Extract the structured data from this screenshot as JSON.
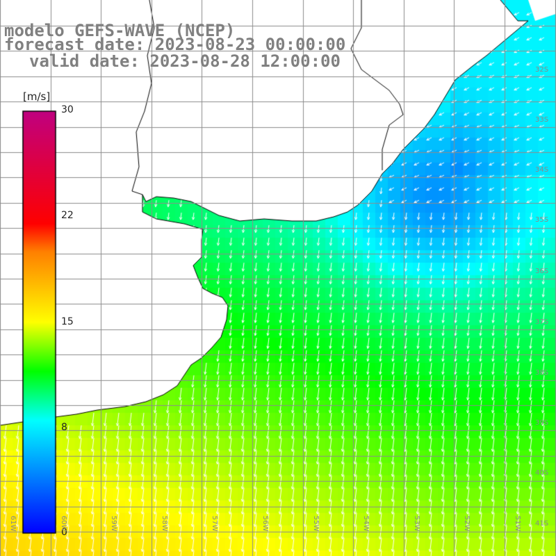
{
  "title": {
    "line1": "modelo GEFS-WAVE (NCEP)",
    "line2": "forecast date: 2023-08-23 00:00:00",
    "line3": "valid date: 2023-08-28 12:00:00"
  },
  "colorbar": {
    "unit": "[m/s]",
    "min": 0,
    "max": 30,
    "tick_labels": [
      "30",
      "22",
      "15",
      "8",
      "0"
    ],
    "tick_values": [
      30,
      22,
      15,
      8,
      0
    ],
    "colors": [
      "#0000ff",
      "#00ffff",
      "#00ff00",
      "#ffff00",
      "#ff8000",
      "#ff0000",
      "#c00080"
    ]
  },
  "axes": {
    "lat_labels": [
      "32S",
      "33S",
      "34S",
      "35S",
      "36S",
      "37S",
      "38S",
      "39S",
      "40S",
      "41S"
    ],
    "lon_labels": [
      "61W",
      "60W",
      "59W",
      "58W",
      "57W",
      "56W",
      "55W",
      "54W",
      "53W",
      "52W",
      "51W"
    ]
  },
  "colors": {
    "grid": "#8c8c8c",
    "coast": "#000000",
    "arrows": "#ffffff",
    "land": "#ffffff"
  }
}
